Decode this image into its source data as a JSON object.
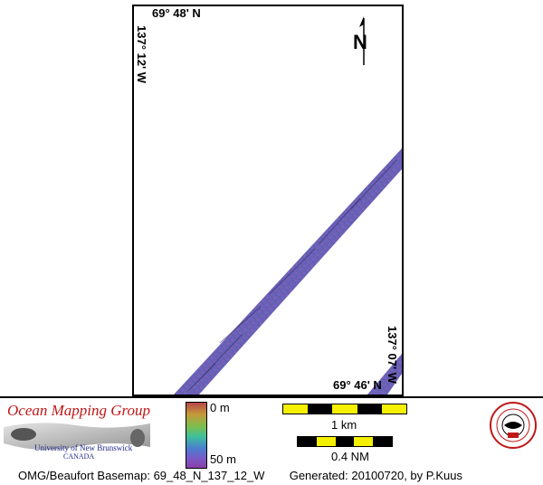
{
  "map": {
    "lat_top": "69° 48' N",
    "lat_bottom": "69° 46' N",
    "lon_left": "137° 12' W",
    "lon_right": "137° 07' W",
    "north_letter": "N"
  },
  "legend": {
    "depth_min": "0 m",
    "depth_max": "50 m",
    "scale_km": "1 km",
    "scale_nm": "0.4 NM"
  },
  "logo": {
    "title": "Ocean Mapping Group",
    "university": "University of New Brunswick",
    "country": "CANADA"
  },
  "caption": {
    "basemap": "OMG/Beaufort Basemap: 69_48_N_137_12_W",
    "generated": "Generated: 20100720, by P.Kuus"
  },
  "colors": {
    "scale_yellow": "#f4f000",
    "logo_red": "#c01818",
    "swath": "#6f5fb0"
  }
}
